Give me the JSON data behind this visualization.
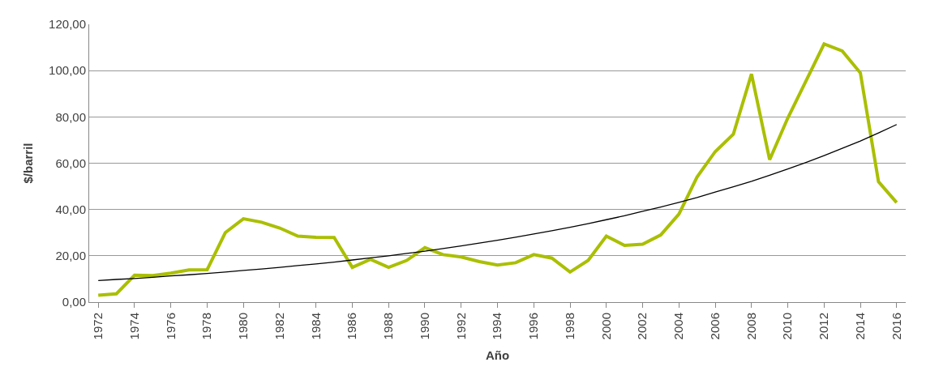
{
  "chart_data": {
    "type": "line",
    "xlabel": "Año",
    "ylabel": "$/barril",
    "categories": [
      "1972",
      null,
      "1974",
      null,
      "1976",
      null,
      "1978",
      null,
      "1980",
      null,
      "1982",
      null,
      "1984",
      null,
      "1986",
      null,
      "1988",
      null,
      "1990",
      null,
      "1992",
      null,
      "1994",
      null,
      "1996",
      null,
      "1998",
      null,
      "2000",
      null,
      "2002",
      null,
      "2004",
      null,
      "2006",
      null,
      "2008",
      null,
      "2010",
      null,
      "2012",
      null,
      "2014",
      null,
      "2016"
    ],
    "series": [
      {
        "color": "#aabf00",
        "values": [
          3.0,
          3.6,
          11.6,
          11.5,
          12.5,
          13.9,
          14.0,
          30.0,
          36.0,
          34.5,
          32.0,
          28.5,
          28.0,
          27.9,
          15.0,
          18.5,
          15.0,
          18.0,
          23.5,
          20.5,
          19.5,
          17.5,
          16.0,
          17.0,
          20.5,
          19.0,
          13.0,
          18.0,
          28.5,
          24.5,
          25.0,
          29.0,
          38.0,
          54.0,
          65.0,
          72.5,
          98.5,
          61.5,
          79.5,
          95.5,
          111.5,
          108.5,
          99.0,
          52.0,
          43.0
        ]
      },
      {
        "type": "line",
        "color": "#000000",
        "values": [
          9.3,
          9.8,
          10.2,
          10.7,
          11.3,
          11.8,
          12.4,
          13.0,
          13.7,
          14.3,
          15.0,
          15.8,
          16.5,
          17.3,
          18.2,
          19.1,
          20.0,
          21.0,
          22.0,
          23.1,
          24.3,
          25.5,
          26.7,
          28.0,
          29.4,
          30.8,
          32.3,
          33.9,
          35.6,
          37.3,
          39.2,
          41.1,
          43.1,
          45.2,
          47.5,
          49.8,
          52.2,
          54.8,
          57.5,
          60.3,
          63.3,
          66.4,
          69.6,
          73.1,
          76.7
        ]
      }
    ],
    "ylim": [
      0,
      120
    ],
    "yticks": [
      {
        "value": 0,
        "label": "0,00"
      },
      {
        "value": 20,
        "label": "20,00"
      },
      {
        "value": 40,
        "label": "40,00"
      },
      {
        "value": 60,
        "label": "60,00"
      },
      {
        "value": 80,
        "label": "80,00"
      },
      {
        "value": 100,
        "label": "100,00"
      },
      {
        "value": 120,
        "label": "120,00"
      }
    ],
    "grid": "y"
  }
}
